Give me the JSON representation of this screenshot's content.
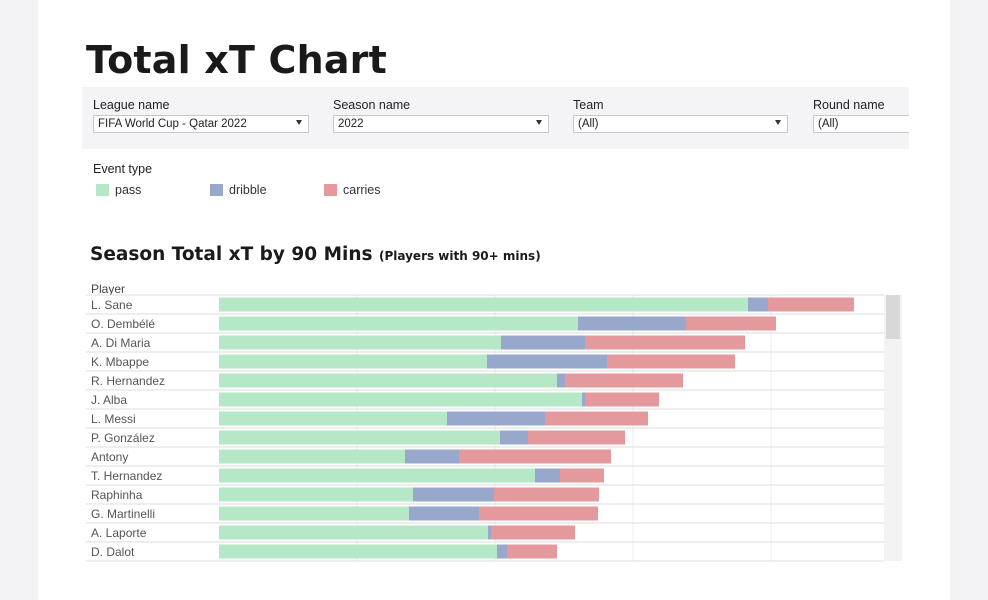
{
  "page_title": "Total xT Chart",
  "filters": [
    {
      "label": "League name",
      "value": "FIFA World Cup - Qatar 2022"
    },
    {
      "label": "Season name",
      "value": "2022"
    },
    {
      "label": "Team",
      "value": "(All)"
    },
    {
      "label": "Round name",
      "value": "(All)"
    }
  ],
  "legend": {
    "title": "Event type",
    "items": [
      {
        "label": "pass",
        "color": "#b4e8c6"
      },
      {
        "label": "dribble",
        "color": "#97a8cc"
      },
      {
        "label": "carries",
        "color": "#e49a9c"
      }
    ]
  },
  "chart_title": "Season Total xT by 90 Mins",
  "chart_subtitle": "(Players with 90+ mins)",
  "chart_data": {
    "type": "bar",
    "orientation": "horizontal",
    "stacked": true,
    "row_header": "Player",
    "categories": [
      "L. Sane",
      "O. Dembélé",
      "A. Di Maria",
      "K. Mbappe",
      "R. Hernandez",
      "J. Alba",
      "L. Messi",
      "P. González",
      "Antony",
      "T. Hernandez",
      "Raphinha",
      "G. Martinelli",
      "A. Laporte",
      "D. Dalot"
    ],
    "series": [
      {
        "name": "pass",
        "color": "#b4e8c6",
        "values": [
          529,
          359,
          282,
          268,
          338,
          363,
          228,
          281,
          186,
          316,
          194,
          190,
          269,
          278
        ]
      },
      {
        "name": "dribble",
        "color": "#97a8cc",
        "values": [
          20,
          108,
          84,
          120,
          8,
          3,
          98,
          28,
          54,
          25,
          81,
          70,
          3,
          10
        ]
      },
      {
        "name": "carries",
        "color": "#e49a9c",
        "values": [
          86,
          90,
          160,
          128,
          118,
          74,
          103,
          97,
          152,
          44,
          105,
          119,
          84,
          50
        ]
      }
    ],
    "gridlines_x": [
      138,
      276,
      414,
      552
    ],
    "xlim": [
      0,
      665
    ],
    "x_axis_labels_visible": false,
    "grid": true
  }
}
